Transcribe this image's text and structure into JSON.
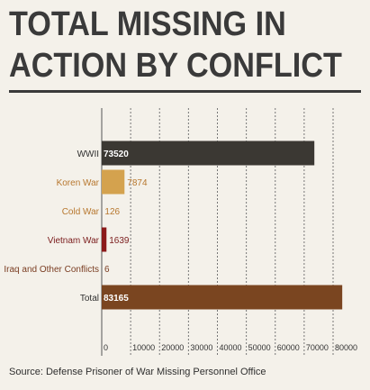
{
  "title_line1": "TOTAL MISSING IN",
  "title_line2": "ACTION BY CONFLICT",
  "source": "Source: Defense Prisoner of War Missing Personnel Office",
  "chart_data": {
    "type": "bar",
    "orientation": "horizontal",
    "categories": [
      "WWII",
      "Koren War",
      "Cold War",
      "Vietnam War",
      "Iraq and Other Conflicts",
      "Total"
    ],
    "values": [
      73520,
      7874,
      126,
      1639,
      6,
      83165
    ],
    "value_labels": [
      "73520",
      "7874",
      "126",
      "1639",
      "6",
      "83165"
    ],
    "category_colors": [
      "#3b3833",
      "#d4a24e",
      "#c9893a",
      "#8b1a1a",
      "#8b4a2b",
      "#7a4520"
    ],
    "label_colors": [
      "#2f2f2f",
      "#b7772e",
      "#b7772e",
      "#7a1c1c",
      "#7a3d22",
      "#2f2f2f"
    ],
    "xlim": [
      0,
      80000
    ],
    "xticks": [
      0,
      10000,
      20000,
      30000,
      40000,
      50000,
      60000,
      70000,
      80000
    ],
    "xtick_labels": [
      "0",
      "10000",
      "20000",
      "30000",
      "40000",
      "50000",
      "60000",
      "70000",
      "80000"
    ],
    "grid": "vertical dashed",
    "title": "",
    "xlabel": "",
    "ylabel": ""
  }
}
